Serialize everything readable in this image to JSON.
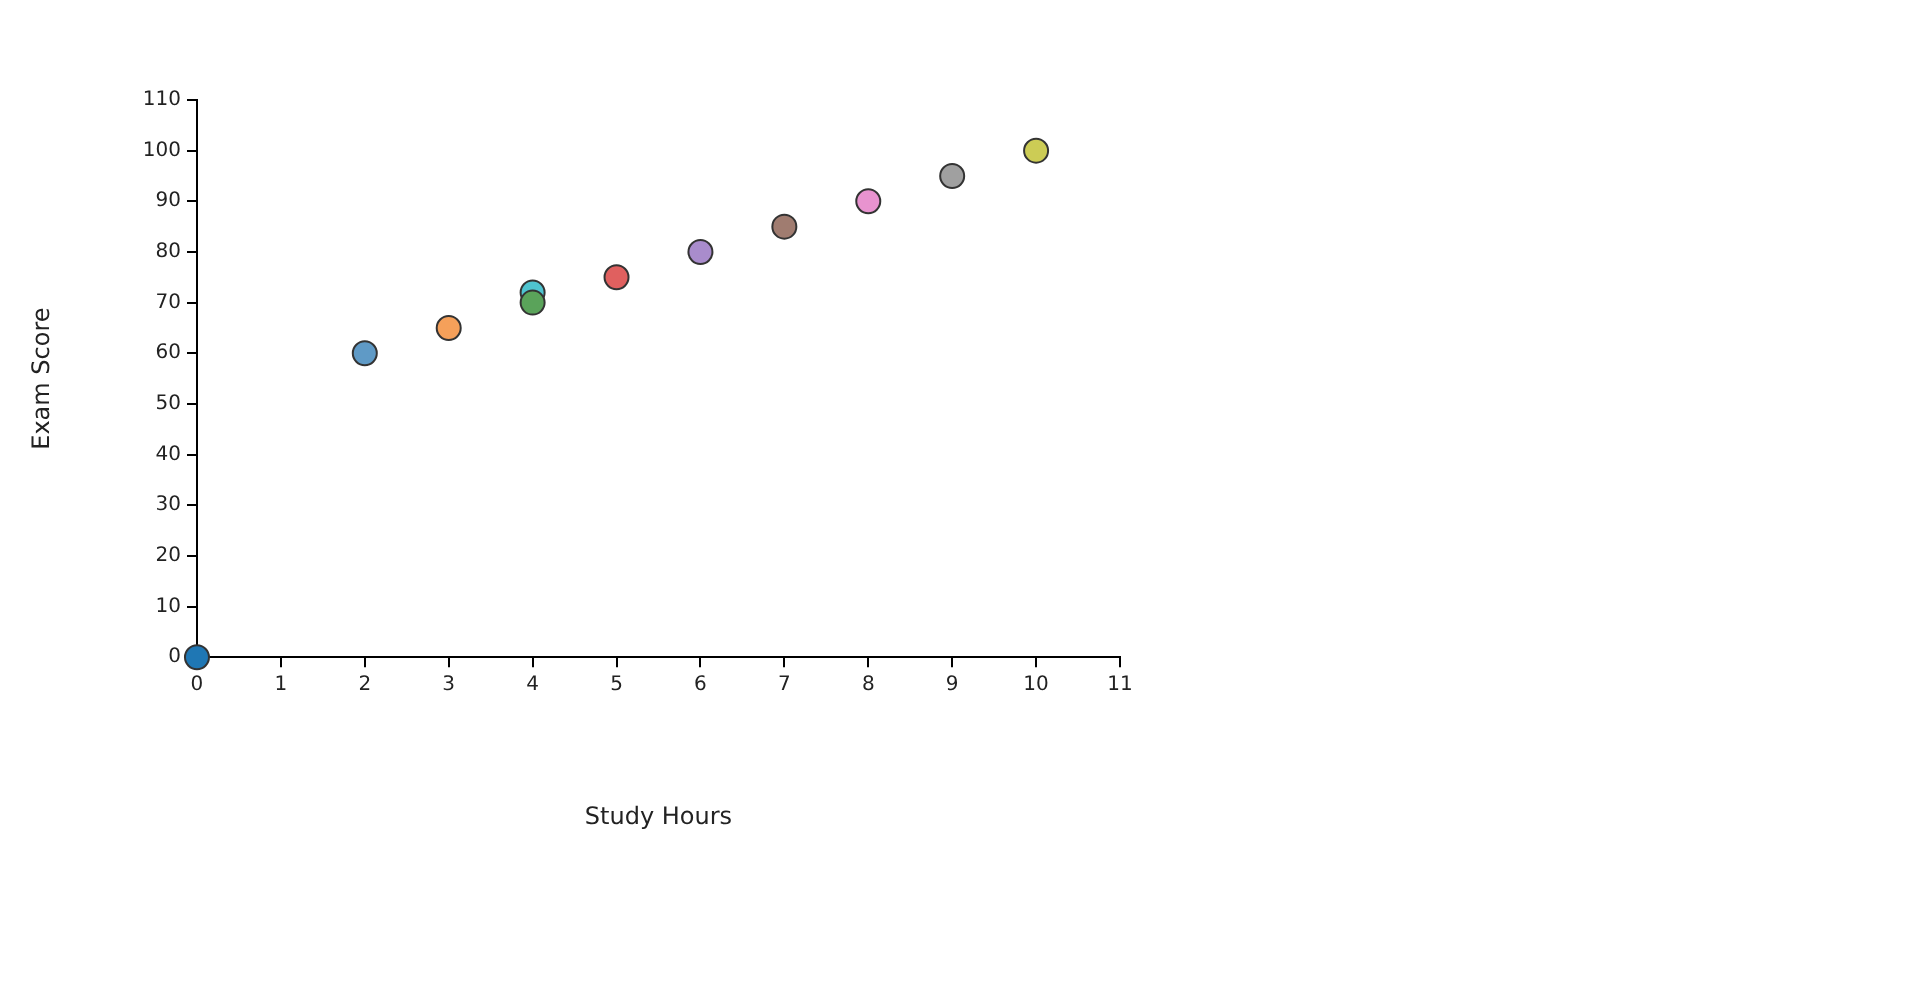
{
  "chart_data": {
    "type": "scatter",
    "xlabel": "Study Hours",
    "ylabel": "Exam Score",
    "x": [
      0,
      2,
      3,
      4,
      4,
      5,
      6,
      7,
      8,
      9,
      10
    ],
    "values": [
      0,
      60,
      65,
      70,
      72,
      75,
      80,
      85,
      90,
      95,
      100
    ],
    "colors": [
      "#1f77b4",
      "#5f9ac6",
      "#f5a05a",
      "#5aa35a",
      "#4fc4d0",
      "#e0605f",
      "#a98ccc",
      "#a07c70",
      "#e893cf",
      "#a0a0a0",
      "#cccc55"
    ],
    "xlim": [
      0,
      11
    ],
    "xticks": [
      0,
      1,
      2,
      3,
      4,
      5,
      6,
      7,
      8,
      9,
      10,
      11
    ],
    "ylim": [
      0,
      110
    ],
    "yticks": [
      0,
      10,
      20,
      30,
      40,
      50,
      60,
      70,
      80,
      90,
      100,
      110
    ],
    "grid": false,
    "legend": false,
    "marker": "circle"
  }
}
